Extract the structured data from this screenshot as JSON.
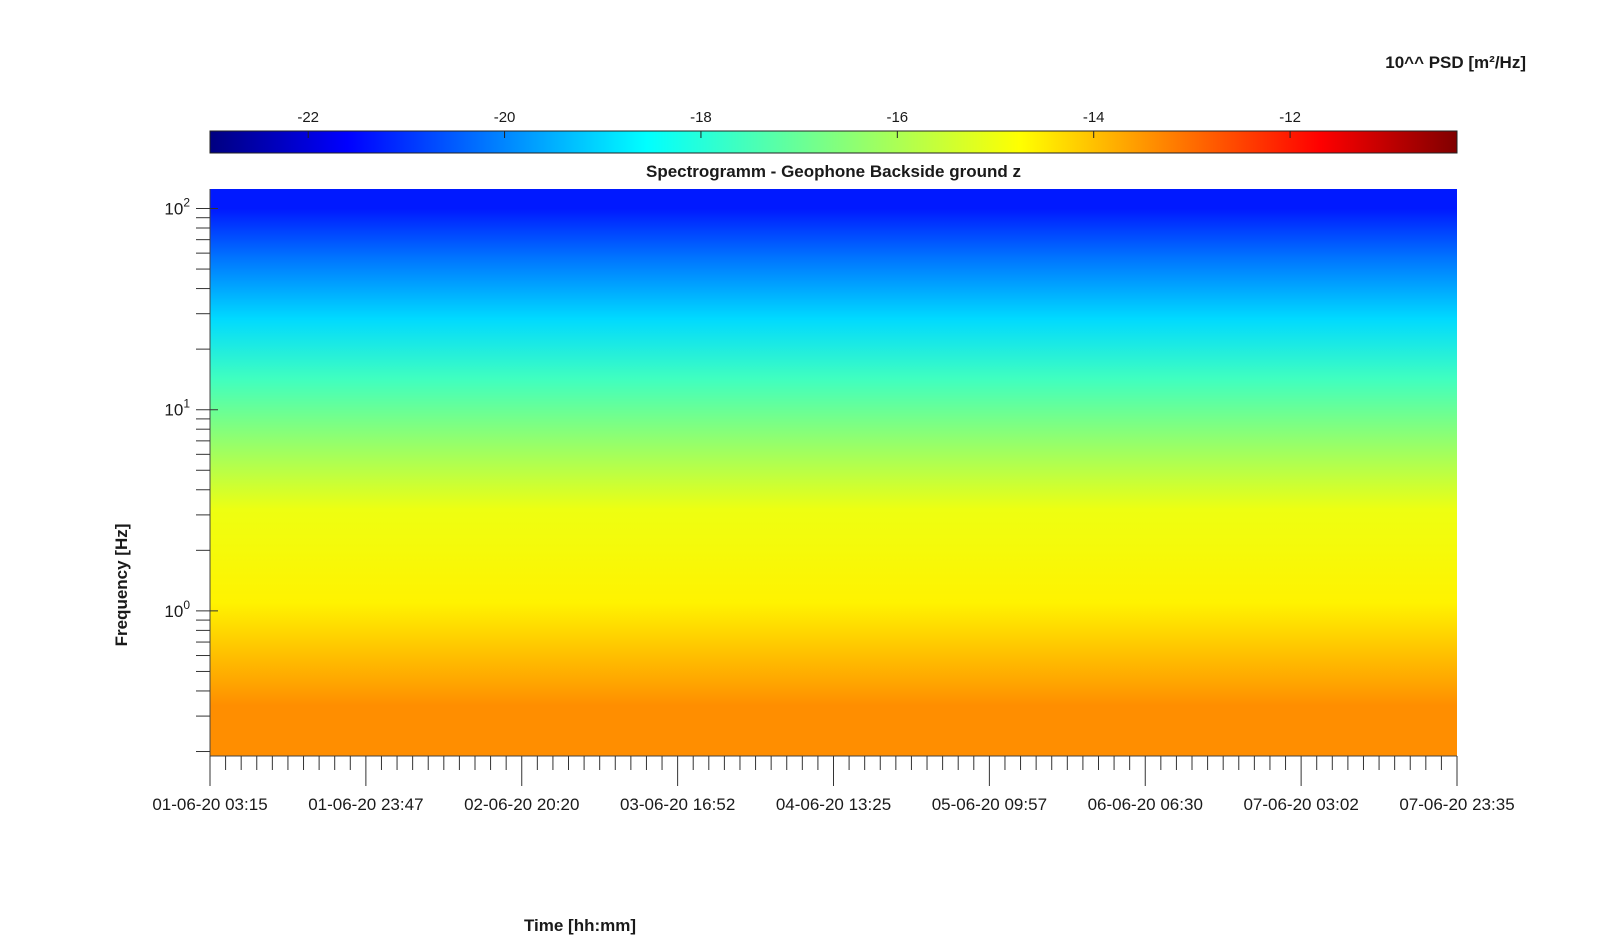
{
  "chart_data": {
    "type": "heatmap",
    "title": "Spectrogramm - Geophone Backside ground z",
    "xlabel": "Time [hh:mm]",
    "ylabel": "Frequency [Hz]",
    "colorbar_label": "10^^ PSD [m²/Hz]",
    "colormap": "jet",
    "color_range": [
      -23,
      -10.3
    ],
    "colorbar_ticks": [
      -22,
      -20,
      -18,
      -16,
      -14,
      -12
    ],
    "x_tick_labels": [
      "01-06-20 03:15",
      "01-06-20 23:47",
      "02-06-20 20:20",
      "03-06-20 16:52",
      "04-06-20 13:25",
      "05-06-20 09:57",
      "06-06-20 06:30",
      "07-06-20 03:02",
      "07-06-20 23:35"
    ],
    "y_scale": "log",
    "ylim": [
      0.19,
      125
    ],
    "y_tick_labels": [
      {
        "value": 1,
        "base": "10",
        "exp": "0"
      },
      {
        "value": 10,
        "base": "10",
        "exp": "1"
      },
      {
        "value": 100,
        "base": "10",
        "exp": "2"
      }
    ],
    "bands": [
      {
        "f_low": 80,
        "f_high": 125,
        "log_psd": -21.3
      },
      {
        "f_low": 40,
        "f_high": 80,
        "log_psd": -20.2
      },
      {
        "f_low": 20,
        "f_high": 40,
        "log_psd": -19.0
      },
      {
        "f_low": 10,
        "f_high": 20,
        "log_psd": -17.6
      },
      {
        "f_low": 5,
        "f_high": 10,
        "log_psd": -16.4
      },
      {
        "f_low": 2,
        "f_high": 5,
        "log_psd": -15.0
      },
      {
        "f_low": 0.6,
        "f_high": 2,
        "log_psd": -14.6
      },
      {
        "f_low": 0.19,
        "f_high": 0.6,
        "log_psd": -13.4
      }
    ]
  }
}
